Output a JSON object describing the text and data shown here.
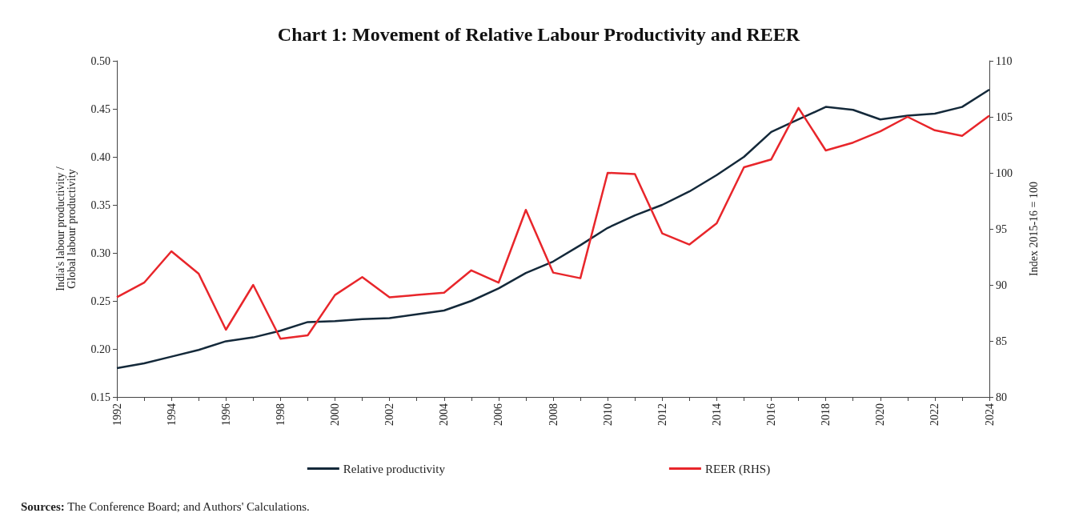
{
  "chart_data": {
    "type": "line",
    "title": "Chart 1: Movement of Relative Labour Productivity and REER",
    "categories": [
      "1992",
      null,
      "1994",
      null,
      "1996",
      null,
      "1998",
      null,
      "2000",
      null,
      "2002",
      null,
      "2004",
      null,
      "2006",
      null,
      "2008",
      null,
      "2010",
      null,
      "2012",
      null,
      "2014",
      null,
      "2016",
      null,
      "2018",
      null,
      "2020",
      null,
      "2022",
      null,
      "2024"
    ],
    "series": [
      {
        "name": "Relative productivity",
        "color": "#14293a",
        "values": [
          0.18,
          0.185,
          0.192,
          0.199,
          0.208,
          0.212,
          0.219,
          0.228,
          0.229,
          0.231,
          0.232,
          0.236,
          0.24,
          0.25,
          0.263,
          0.279,
          0.291,
          0.308,
          0.326,
          0.339,
          0.35,
          0.364,
          0.381,
          0.4,
          0.426,
          0.439,
          0.452,
          0.449,
          0.439,
          0.443,
          0.445,
          0.452,
          0.47
        ]
      },
      {
        "name": "REER (RHS)",
        "color": "#e8262b",
        "axis": "y2",
        "values": [
          88.9,
          90.2,
          93.0,
          91.0,
          86.0,
          90.0,
          85.2,
          85.5,
          89.1,
          90.7,
          88.9,
          89.1,
          89.3,
          91.3,
          90.2,
          96.7,
          91.1,
          90.6,
          100.0,
          99.9,
          94.6,
          93.6,
          95.5,
          100.5,
          101.2,
          105.8,
          102.0,
          102.7,
          103.7,
          105.0,
          103.8,
          103.3,
          105.1
        ]
      }
    ],
    "ylabel": "India's labour productivity / Global labour productivity",
    "y2label": "Index 2015-16 = 100",
    "ylim": [
      0.15,
      0.5
    ],
    "yticks": [
      {
        "value": 0.15,
        "label": "0.15"
      },
      {
        "value": 0.2,
        "label": "0.20"
      },
      {
        "value": 0.25,
        "label": "0.25"
      },
      {
        "value": 0.3,
        "label": "0.30"
      },
      {
        "value": 0.35,
        "label": "0.35"
      },
      {
        "value": 0.4,
        "label": "0.40"
      },
      {
        "value": 0.45,
        "label": "0.45"
      },
      {
        "value": 0.5,
        "label": "0.50"
      }
    ],
    "y2lim": [
      80,
      110
    ],
    "y2ticks": [
      80,
      85,
      90,
      95,
      100,
      105,
      110
    ],
    "grid": false,
    "legend": "bottom",
    "marker": "none",
    "line_style": "solid",
    "annotations": [
      "Sources: The Conference Board; and Authors' Calculations."
    ]
  }
}
